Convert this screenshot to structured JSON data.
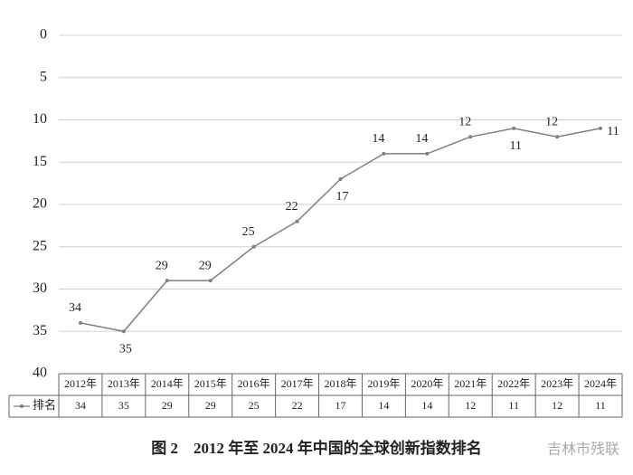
{
  "chart_data": {
    "type": "line",
    "title": "图 2　2012 年至 2024 年中国的全球创新指数排名",
    "categories": [
      "2012年",
      "2013年",
      "2014年",
      "2015年",
      "2016年",
      "2017年",
      "2018年",
      "2019年",
      "2020年",
      "2021年",
      "2022年",
      "2023年",
      "2024年"
    ],
    "series": [
      {
        "name": "排名",
        "color": "#7f7f7f",
        "values": [
          34,
          35,
          29,
          29,
          25,
          22,
          17,
          14,
          14,
          12,
          11,
          12,
          11
        ]
      }
    ],
    "ylim": [
      0,
      40
    ],
    "yticks": [
      0,
      5,
      10,
      15,
      20,
      25,
      30,
      35,
      40
    ],
    "y_inverted": true,
    "grid": true,
    "data_table": true
  },
  "watermark": "吉林市残联"
}
